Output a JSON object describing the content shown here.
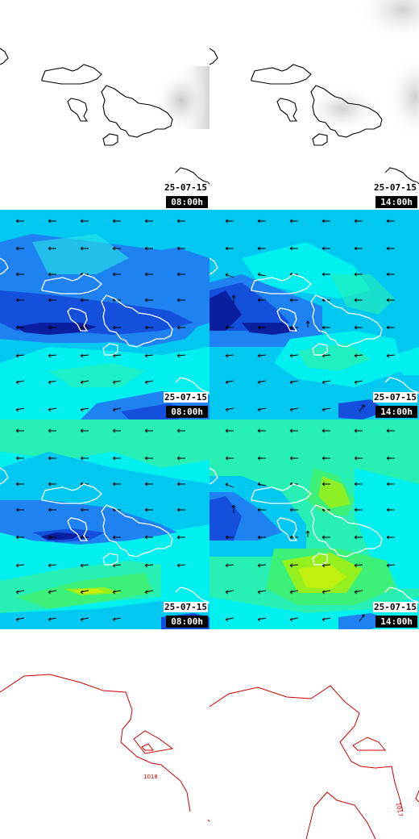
{
  "rows": [
    {
      "name": "cloud-cover",
      "panels": [
        {
          "date": "25-07-15",
          "time": "08:00h"
        },
        {
          "date": "25-07-15",
          "time": "14:00h"
        }
      ]
    },
    {
      "name": "wind-speed-10m",
      "panels": [
        {
          "date": "25-07-15",
          "time": "08:00h"
        },
        {
          "date": "25-07-15",
          "time": "14:00h"
        }
      ]
    },
    {
      "name": "wind-gusts",
      "panels": [
        {
          "date": "25-07-15",
          "time": "08:00h"
        },
        {
          "date": "25-07-15",
          "time": "14:00h"
        }
      ]
    },
    {
      "name": "surface-pressure",
      "panels": [
        {
          "isobar_label": "1018"
        },
        {
          "isobar_label": "1017"
        }
      ]
    }
  ],
  "colors": {
    "coastline_on_white": "#000000",
    "coastline_on_color": "#ffffff",
    "isobar": "#cc0000",
    "wind_scale": [
      "#0a1ea0",
      "#1450dc",
      "#1e82f0",
      "#00c8f0",
      "#00f0f0",
      "#28f0b4",
      "#3cf078",
      "#96f01e",
      "#d2f00a"
    ]
  }
}
